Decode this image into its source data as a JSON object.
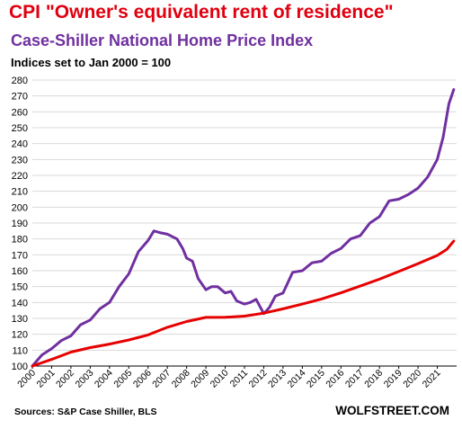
{
  "header": {
    "title": "CPI \"Owner's equivalent rent of residence\"",
    "subtitle_series": "Case-Shiller  National  Home Price Index",
    "note": "Indices set to Jan 2000 = 100"
  },
  "footer": {
    "source": "Sources: S&P Case Shiller, BLS",
    "brand": "WOLFSTREET.COM"
  },
  "colors": {
    "cpi": "#e60000",
    "case_shiller": "#7030a0",
    "grid": "#d9d9d9"
  },
  "chart_data": {
    "type": "line",
    "ylim": [
      100,
      280
    ],
    "yticks": [
      100,
      110,
      120,
      130,
      140,
      150,
      160,
      170,
      180,
      190,
      200,
      210,
      220,
      230,
      240,
      250,
      260,
      270,
      280
    ],
    "xlim": [
      2000,
      2022
    ],
    "xticks": [
      "2000",
      "2001",
      "2002",
      "2003",
      "2004",
      "2005",
      "2006",
      "2007",
      "2008",
      "2009",
      "2010",
      "2011",
      "2012",
      "2013",
      "2014",
      "2015",
      "2016",
      "2017",
      "2018",
      "2019",
      "2020",
      "2021"
    ],
    "grid": true,
    "series": [
      {
        "key": "case_shiller",
        "x": [
          2000.0,
          2000.5,
          2001.0,
          2001.5,
          2002.0,
          2002.5,
          2003.0,
          2003.5,
          2004.0,
          2004.5,
          2005.0,
          2005.5,
          2006.0,
          2006.3,
          2006.6,
          2007.0,
          2007.5,
          2007.8,
          2008.0,
          2008.3,
          2008.6,
          2009.0,
          2009.3,
          2009.6,
          2010.0,
          2010.3,
          2010.6,
          2011.0,
          2011.3,
          2011.6,
          2012.0,
          2012.3,
          2012.6,
          2013.0,
          2013.5,
          2014.0,
          2014.5,
          2015.0,
          2015.5,
          2016.0,
          2016.5,
          2017.0,
          2017.5,
          2018.0,
          2018.5,
          2019.0,
          2019.5,
          2020.0,
          2020.5,
          2021.0,
          2021.3,
          2021.6,
          2021.85
        ],
        "y": [
          100,
          107,
          111,
          116,
          119,
          126,
          129,
          136,
          140,
          150,
          158,
          172,
          179,
          185,
          184,
          183,
          180,
          174,
          168,
          166,
          155,
          148,
          150,
          150,
          146,
          147,
          141,
          139,
          140,
          142,
          133,
          137,
          144,
          146,
          159,
          160,
          165,
          166,
          171,
          174,
          180,
          182,
          190,
          194,
          204,
          205,
          208,
          212,
          219,
          230,
          244,
          265,
          274
        ]
      },
      {
        "key": "cpi",
        "x": [
          2000,
          2001,
          2002,
          2003,
          2004,
          2005,
          2006,
          2007,
          2008,
          2009,
          2010,
          2011,
          2012,
          2013,
          2014,
          2015,
          2016,
          2017,
          2018,
          2019,
          2020,
          2021,
          2021.5,
          2021.85
        ],
        "y": [
          100,
          104.2,
          108.8,
          111.6,
          113.8,
          116.4,
          119.6,
          124.4,
          128.0,
          130.6,
          130.7,
          131.4,
          133.3,
          136.0,
          139.0,
          142.2,
          146.1,
          150.3,
          154.7,
          159.5,
          164.5,
          169.6,
          173.5,
          178.6
        ]
      }
    ]
  }
}
